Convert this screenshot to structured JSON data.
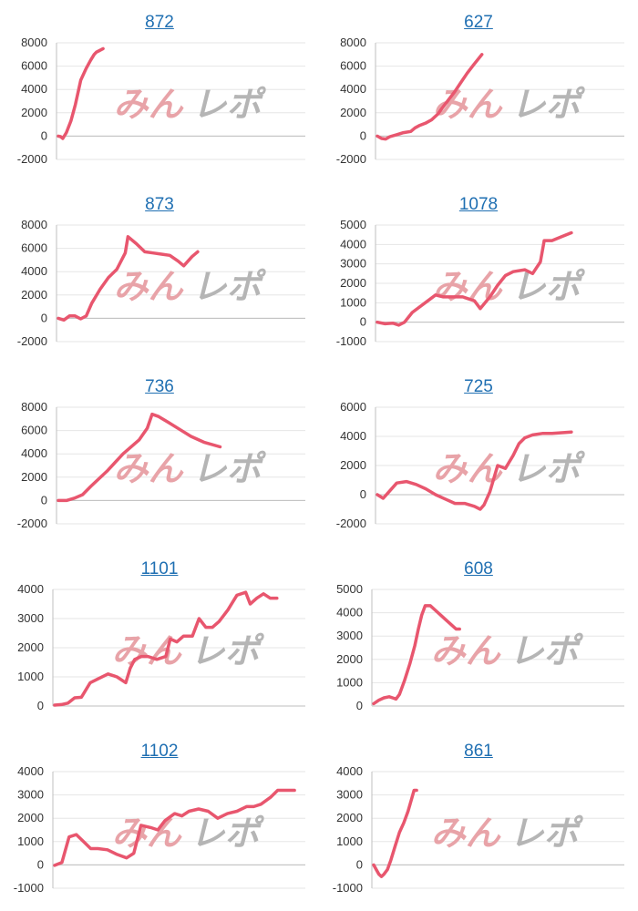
{
  "watermark": {
    "text_a": "みん",
    "text_b": "レポ",
    "color_a": "#e8a3a8",
    "color_b": "#b5b5b5"
  },
  "line_color": "#e8566e",
  "grid_color": "#e6e6e6",
  "axis_color": "#bfbfbf",
  "chart_data": [
    {
      "type": "line",
      "title": "872",
      "yticks": [
        8000,
        6000,
        4000,
        2000,
        0,
        -2000
      ],
      "ylim": [
        -2000,
        8000
      ],
      "x": [
        0,
        0.05,
        0.1,
        0.18,
        0.28,
        0.38,
        0.5,
        0.62,
        0.72,
        0.8,
        0.85,
        0.9,
        0.95,
        1.0
      ],
      "y": [
        0,
        -50,
        -200,
        300,
        1300,
        2700,
        4800,
        5800,
        6500,
        7000,
        7200,
        7300,
        7400,
        7500
      ]
    },
    {
      "type": "line",
      "title": "627",
      "yticks": [
        8000,
        6000,
        4000,
        2000,
        0,
        -2000
      ],
      "ylim": [
        -2000,
        8000
      ],
      "x": [
        0,
        0.04,
        0.08,
        0.12,
        0.18,
        0.25,
        0.32,
        0.36,
        0.4,
        0.46,
        0.52,
        0.58,
        0.62,
        0.68,
        0.74,
        0.8,
        0.86,
        0.92,
        1.0
      ],
      "y": [
        0,
        -200,
        -250,
        -50,
        100,
        300,
        400,
        700,
        900,
        1100,
        1400,
        1900,
        2400,
        3100,
        3800,
        4600,
        5400,
        6100,
        7000
      ]
    },
    {
      "type": "line",
      "title": "873",
      "yticks": [
        8000,
        6000,
        4000,
        2000,
        0,
        -2000
      ],
      "ylim": [
        -2000,
        8000
      ],
      "x": [
        0,
        0.04,
        0.08,
        0.12,
        0.16,
        0.2,
        0.24,
        0.3,
        0.36,
        0.42,
        0.48,
        0.5,
        0.56,
        0.62,
        0.68,
        0.74,
        0.8,
        0.86,
        0.9,
        0.96,
        1.0
      ],
      "y": [
        0,
        -150,
        200,
        200,
        -50,
        200,
        1300,
        2500,
        3500,
        4200,
        5600,
        7000,
        6400,
        5700,
        5600,
        5500,
        5400,
        4900,
        4500,
        5300,
        5700
      ]
    },
    {
      "type": "line",
      "title": "1078",
      "yticks": [
        5000,
        4000,
        3000,
        2000,
        1000,
        0,
        -1000
      ],
      "ylim": [
        -1000,
        5000
      ],
      "x": [
        0,
        0.04,
        0.08,
        0.11,
        0.14,
        0.18,
        0.22,
        0.26,
        0.3,
        0.34,
        0.38,
        0.44,
        0.5,
        0.53,
        0.58,
        0.62,
        0.66,
        0.7,
        0.76,
        0.8,
        0.82,
        0.84,
        0.86,
        0.9,
        0.95,
        1.0
      ],
      "y": [
        0,
        -80,
        -50,
        -150,
        0,
        500,
        800,
        1100,
        1400,
        1300,
        1300,
        1300,
        1100,
        700,
        1300,
        1900,
        2400,
        2600,
        2700,
        2500,
        2800,
        3100,
        4200,
        4200,
        4400,
        4600
      ]
    },
    {
      "type": "line",
      "title": "736",
      "yticks": [
        8000,
        6000,
        4000,
        2000,
        0,
        -2000
      ],
      "ylim": [
        -2000,
        8000
      ],
      "x": [
        0,
        0.05,
        0.1,
        0.15,
        0.2,
        0.3,
        0.4,
        0.5,
        0.55,
        0.58,
        0.62,
        0.68,
        0.75,
        0.82,
        0.9,
        1.0
      ],
      "y": [
        0,
        0,
        200,
        500,
        1200,
        2500,
        4000,
        5200,
        6200,
        7400,
        7200,
        6700,
        6100,
        5500,
        5000,
        4600
      ]
    },
    {
      "type": "line",
      "title": "725",
      "yticks": [
        6000,
        4000,
        2000,
        0,
        -2000
      ],
      "ylim": [
        -2000,
        6000
      ],
      "x": [
        0,
        0.03,
        0.06,
        0.1,
        0.15,
        0.2,
        0.25,
        0.3,
        0.35,
        0.4,
        0.45,
        0.5,
        0.53,
        0.55,
        0.58,
        0.62,
        0.66,
        0.7,
        0.73,
        0.76,
        0.8,
        0.85,
        0.9,
        1.0
      ],
      "y": [
        0,
        -250,
        200,
        800,
        900,
        700,
        400,
        0,
        -300,
        -600,
        -600,
        -800,
        -1000,
        -700,
        200,
        2000,
        1800,
        2700,
        3500,
        3900,
        4100,
        4200,
        4200,
        4300
      ]
    },
    {
      "type": "line",
      "title": "1101",
      "yticks": [
        4000,
        3000,
        2000,
        1000,
        0
      ],
      "ylim": [
        0,
        4000
      ],
      "x": [
        0,
        0.03,
        0.06,
        0.09,
        0.12,
        0.16,
        0.2,
        0.24,
        0.28,
        0.32,
        0.34,
        0.36,
        0.39,
        0.42,
        0.46,
        0.5,
        0.52,
        0.55,
        0.58,
        0.62,
        0.65,
        0.68,
        0.71,
        0.74,
        0.78,
        0.82,
        0.86,
        0.88,
        0.91,
        0.94,
        0.97,
        1.0
      ],
      "y": [
        30,
        50,
        100,
        280,
        300,
        800,
        950,
        1100,
        1000,
        800,
        1300,
        1600,
        1700,
        1700,
        1600,
        1700,
        2300,
        2200,
        2400,
        2400,
        3000,
        2700,
        2700,
        2900,
        3300,
        3800,
        3900,
        3500,
        3700,
        3850,
        3700,
        3700
      ]
    },
    {
      "type": "line",
      "title": "608",
      "yticks": [
        5000,
        4000,
        3000,
        2000,
        1000,
        0
      ],
      "ylim": [
        0,
        5000
      ],
      "x": [
        0,
        0.06,
        0.12,
        0.18,
        0.22,
        0.26,
        0.3,
        0.36,
        0.42,
        0.48,
        0.52,
        0.56,
        0.6,
        0.66,
        0.72,
        0.78,
        0.84,
        0.9,
        0.96,
        1.0
      ],
      "y": [
        100,
        250,
        350,
        400,
        350,
        300,
        500,
        1100,
        1800,
        2600,
        3300,
        3900,
        4300,
        4300,
        4100,
        3900,
        3700,
        3500,
        3300,
        3300
      ]
    },
    {
      "type": "line",
      "title": "1102",
      "yticks": [
        4000,
        3000,
        2000,
        1000,
        0,
        -1000
      ],
      "ylim": [
        -1000,
        4000
      ],
      "x": [
        0,
        0.03,
        0.06,
        0.09,
        0.12,
        0.15,
        0.18,
        0.22,
        0.26,
        0.3,
        0.33,
        0.36,
        0.4,
        0.43,
        0.46,
        0.5,
        0.53,
        0.56,
        0.6,
        0.64,
        0.68,
        0.72,
        0.76,
        0.8,
        0.83,
        0.86,
        0.9,
        0.93,
        0.96,
        1.0
      ],
      "y": [
        -20,
        100,
        1200,
        1300,
        1000,
        700,
        700,
        650,
        450,
        300,
        500,
        1700,
        1600,
        1500,
        1900,
        2200,
        2100,
        2300,
        2400,
        2300,
        2000,
        2200,
        2300,
        2500,
        2500,
        2600,
        2900,
        3200,
        3200,
        3200
      ]
    },
    {
      "type": "line",
      "title": "861",
      "yticks": [
        4000,
        3000,
        2000,
        1000,
        0,
        -1000
      ],
      "ylim": [
        -1000,
        4000
      ],
      "x": [
        0,
        0.06,
        0.12,
        0.18,
        0.24,
        0.32,
        0.4,
        0.5,
        0.6,
        0.7,
        0.8,
        0.88,
        0.94,
        1.0
      ],
      "y": [
        0,
        -200,
        -400,
        -500,
        -400,
        -200,
        200,
        800,
        1400,
        1800,
        2300,
        2800,
        3200,
        3200
      ]
    }
  ]
}
